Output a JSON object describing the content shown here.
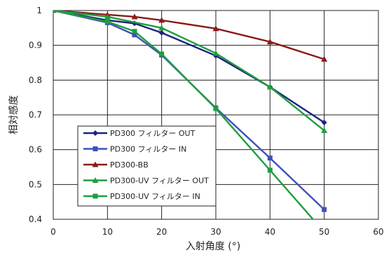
{
  "chart_data": {
    "type": "line",
    "xlabel": "入射角度 (°)",
    "ylabel": "相対感度",
    "xlim": [
      0,
      60
    ],
    "ylim": [
      0.4,
      1
    ],
    "x_ticks": [
      "0",
      "10",
      "20",
      "30",
      "40",
      "50",
      "60"
    ],
    "y_ticks": [
      "0.4",
      "0.5",
      "0.6",
      "0.7",
      "0.8",
      "0.9",
      "1"
    ],
    "grid": true,
    "legend_position": "bottom-left",
    "series": [
      {
        "name": "PD300 フィルター OUT",
        "color": "#1a237e",
        "marker": "diamond",
        "x": [
          0,
          10,
          15,
          20,
          30,
          40,
          50
        ],
        "y": [
          1.0,
          0.972,
          0.963,
          0.936,
          0.87,
          0.78,
          0.678
        ]
      },
      {
        "name": "PD300 フィルター IN",
        "color": "#3f51b5",
        "marker": "square",
        "x": [
          0,
          10,
          15,
          20,
          30,
          40,
          50
        ],
        "y": [
          1.0,
          0.965,
          0.93,
          0.872,
          0.72,
          0.576,
          0.428
        ]
      },
      {
        "name": "PD300-BB",
        "color": "#8b1a1a",
        "marker": "triangle",
        "x": [
          0,
          10,
          15,
          20,
          30,
          40,
          50
        ],
        "y": [
          1.0,
          0.988,
          0.982,
          0.972,
          0.948,
          0.91,
          0.86
        ]
      },
      {
        "name": "PD300-UV フィルター OUT",
        "color": "#1e9e3e",
        "marker": "triangle",
        "x": [
          0,
          10,
          20,
          30,
          40,
          50
        ],
        "y": [
          1.0,
          0.982,
          0.95,
          0.877,
          0.78,
          0.655
        ]
      },
      {
        "name": "PD300-UV フィルター IN",
        "color": "#1e9e3e",
        "marker": "square",
        "x": [
          0,
          10,
          15,
          20,
          30,
          40,
          48.5
        ],
        "y": [
          1.0,
          0.968,
          0.94,
          0.875,
          0.718,
          0.541,
          0.39
        ]
      }
    ]
  }
}
